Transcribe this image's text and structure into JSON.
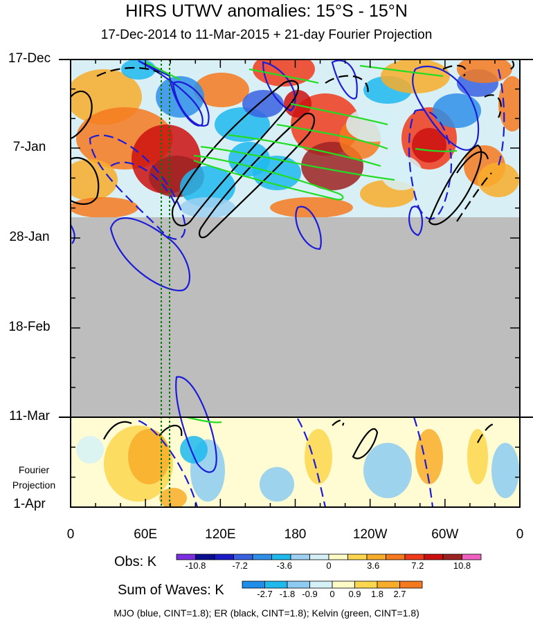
{
  "title": "HIRS UTWV anomalies: 15°S - 15°N",
  "subtitle": "17-Dec-2014 to 11-Mar-2015 + 21-day Fourier Projection",
  "chart_data": {
    "type": "heatmap",
    "x_ticks": [
      "0",
      "60E",
      "120E",
      "180",
      "120W",
      "60W",
      "0"
    ],
    "y_ticks": [
      "17-Dec",
      "7-Jan",
      "28-Jan",
      "18-Feb",
      "11-Mar",
      "1-Apr"
    ],
    "projection_label": "Fourier Projection",
    "missing_period": "late Jan to 11-Mar (no observations, gray)",
    "obs_colorbar": {
      "label": "Obs: K",
      "levels": [
        "-10.8",
        "-7.2",
        "-3.6",
        "0",
        "3.6",
        "7.2",
        "10.8"
      ],
      "colors": [
        "#7b2fe0",
        "#0a0e91",
        "#1b1bc8",
        "#3a62e0",
        "#2f8fe8",
        "#1fb9ee",
        "#9ed0f1",
        "#d5f1f7",
        "#fffbc7",
        "#fbd64e",
        "#f8ad2a",
        "#f4791f",
        "#ef3b1c",
        "#cc1010",
        "#9e2222",
        "#f060c0"
      ]
    },
    "waves_colorbar": {
      "label": "Sum of Waves: K",
      "levels": [
        "-2.7",
        "-1.8",
        "-0.9",
        "0",
        "0.9",
        "1.8",
        "2.7"
      ],
      "colors": [
        "#1f8ee8",
        "#1fb9ee",
        "#8dcbf2",
        "#d5f1f7",
        "#fffbc7",
        "#fbd64e",
        "#f8ad2a",
        "#f4791f"
      ]
    },
    "contours": [
      {
        "name": "MJO",
        "color": "#1b1bd8",
        "cint": 1.8
      },
      {
        "name": "ER",
        "color": "#000000",
        "cint": 1.8
      },
      {
        "name": "Kelvin",
        "color": "#22dd22",
        "cint": 1.8
      }
    ]
  },
  "footer": "MJO (blue, CINT=1.8); ER (black, CINT=1.8); Kelvin (green, CINT=1.8)"
}
